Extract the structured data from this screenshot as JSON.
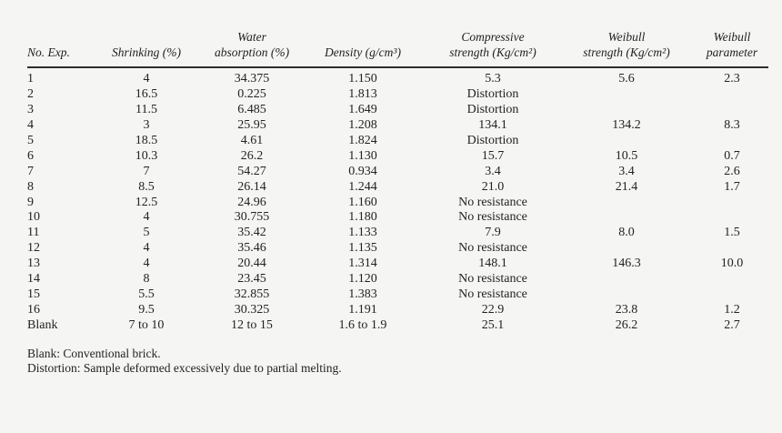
{
  "page": {
    "background": "#f5f5f3",
    "text_color": "#222222",
    "rule_color": "#2e2e2e"
  },
  "table": {
    "columns": [
      {
        "id": "no_exp",
        "label": "No. Exp.",
        "line1": "",
        "line2": "No. Exp."
      },
      {
        "id": "shrinking",
        "label": "Shrinking (%)",
        "line1": "",
        "line2": "Shrinking (%)"
      },
      {
        "id": "water_absorption",
        "label": "Water absorption (%)",
        "line1": "Water",
        "line2": "absorption (%)"
      },
      {
        "id": "density",
        "label": "Density (g/cm³)",
        "line1": "",
        "line2": "Density (g/cm³)"
      },
      {
        "id": "compressive_strength",
        "label": "Compressive strength (Kg/cm²)",
        "line1": "Compressive",
        "line2": "strength (Kg/cm²)"
      },
      {
        "id": "weibull_strength",
        "label": "Weibull strength (Kg/cm²)",
        "line1": "Weibull",
        "line2": "strength (Kg/cm²)"
      },
      {
        "id": "weibull_parameter",
        "label": "Weibull parameter",
        "line1": "Weibull",
        "line2": "parameter"
      }
    ],
    "rows": [
      [
        "1",
        "4",
        "34.375",
        "1.150",
        "5.3",
        "5.6",
        "2.3"
      ],
      [
        "2",
        "16.5",
        "0.225",
        "1.813",
        "Distortion",
        "",
        ""
      ],
      [
        "3",
        "11.5",
        "6.485",
        "1.649",
        "Distortion",
        "",
        ""
      ],
      [
        "4",
        "3",
        "25.95",
        "1.208",
        "134.1",
        "134.2",
        "8.3"
      ],
      [
        "5",
        "18.5",
        "4.61",
        "1.824",
        "Distortion",
        "",
        ""
      ],
      [
        "6",
        "10.3",
        "26.2",
        "1.130",
        "15.7",
        "10.5",
        "0.7"
      ],
      [
        "7",
        "7",
        "54.27",
        "0.934",
        "3.4",
        "3.4",
        "2.6"
      ],
      [
        "8",
        "8.5",
        "26.14",
        "1.244",
        "21.0",
        "21.4",
        "1.7"
      ],
      [
        "9",
        "12.5",
        "24.96",
        "1.160",
        "No resistance",
        "",
        ""
      ],
      [
        "10",
        "4",
        "30.755",
        "1.180",
        "No resistance",
        "",
        ""
      ],
      [
        "11",
        "5",
        "35.42",
        "1.133",
        "7.9",
        "8.0",
        "1.5"
      ],
      [
        "12",
        "4",
        "35.46",
        "1.135",
        "No resistance",
        "",
        ""
      ],
      [
        "13",
        "4",
        "20.44",
        "1.314",
        "148.1",
        "146.3",
        "10.0"
      ],
      [
        "14",
        "8",
        "23.45",
        "1.120",
        "No resistance",
        "",
        ""
      ],
      [
        "15",
        "5.5",
        "32.855",
        "1.383",
        "No resistance",
        "",
        ""
      ],
      [
        "16",
        "9.5",
        "30.325",
        "1.191",
        "22.9",
        "23.8",
        "1.2"
      ],
      [
        "Blank",
        "7 to 10",
        "12 to 15",
        "1.6 to 1.9",
        "25.1",
        "26.2",
        "2.7"
      ]
    ]
  },
  "footnotes": [
    "Blank: Conventional brick.",
    "Distortion: Sample deformed excessively due to partial melting."
  ]
}
